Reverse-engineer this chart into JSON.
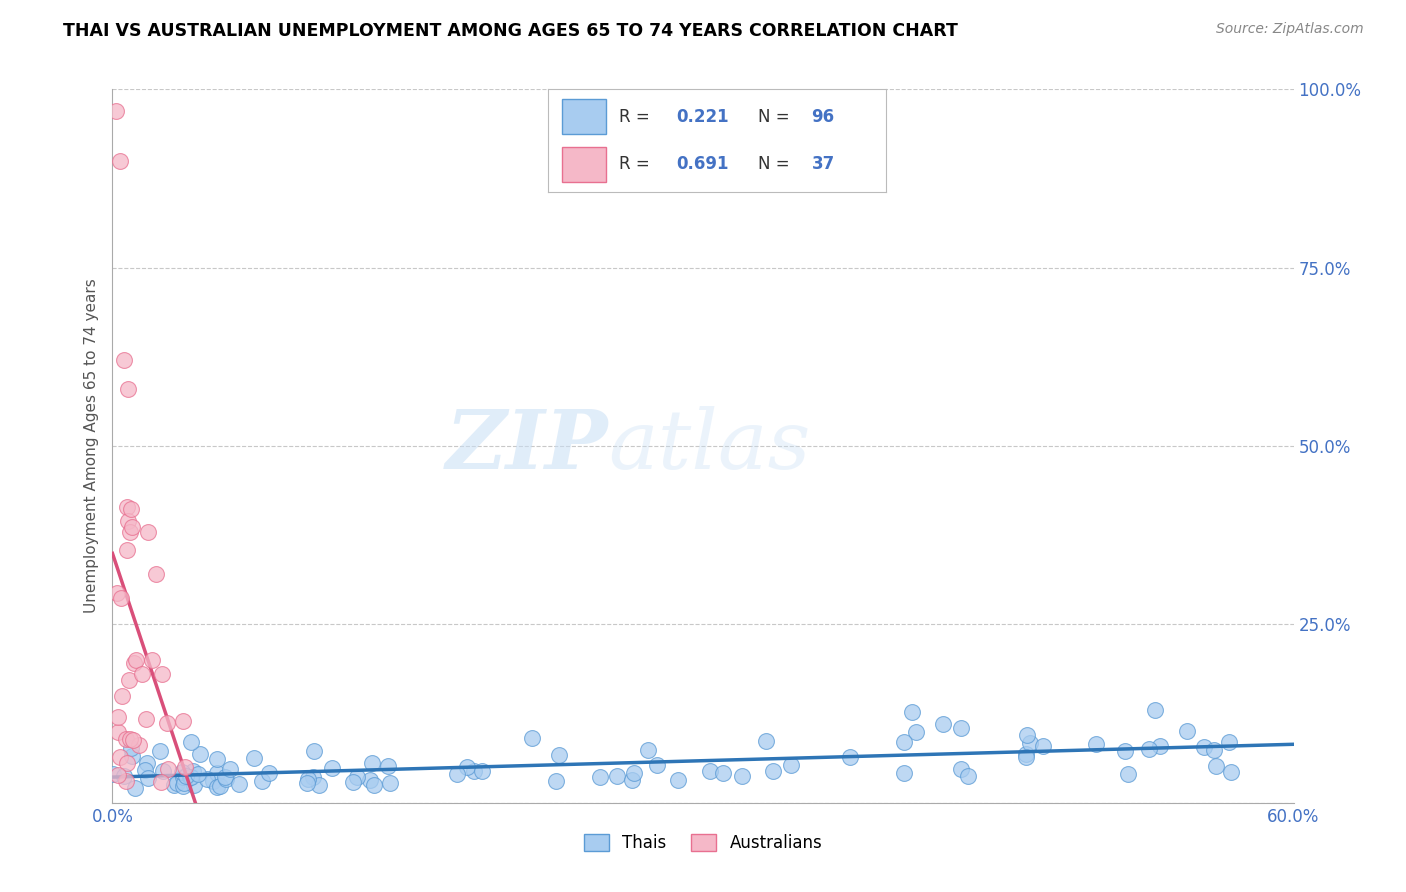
{
  "title": "THAI VS AUSTRALIAN UNEMPLOYMENT AMONG AGES 65 TO 74 YEARS CORRELATION CHART",
  "source": "Source: ZipAtlas.com",
  "ylabel": "Unemployment Among Ages 65 to 74 years",
  "xlim": [
    0.0,
    0.6
  ],
  "ylim": [
    0.0,
    1.0
  ],
  "xtick_vals": [
    0.0,
    0.1,
    0.2,
    0.3,
    0.4,
    0.5,
    0.6
  ],
  "xtick_labels": [
    "0.0%",
    "",
    "",
    "",
    "",
    "",
    "60.0%"
  ],
  "ytick_vals": [
    0.0,
    0.25,
    0.5,
    0.75,
    1.0
  ],
  "ytick_labels": [
    "",
    "25.0%",
    "50.0%",
    "75.0%",
    "100.0%"
  ],
  "thai_color": "#A8CCF0",
  "thai_edge_color": "#5B9BD5",
  "aus_color": "#F5B8C8",
  "aus_edge_color": "#E87090",
  "thai_line_color": "#2E75B6",
  "aus_line_color": "#D94F7A",
  "thai_R": 0.221,
  "thai_N": 96,
  "aus_R": 0.691,
  "aus_N": 37,
  "watermark_zip": "ZIP",
  "watermark_atlas": "atlas",
  "legend_thai": "Thais",
  "legend_aus": "Australians"
}
